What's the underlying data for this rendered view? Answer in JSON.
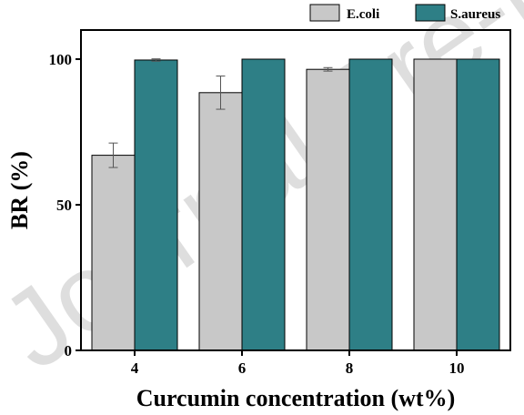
{
  "watermark": "Journal Pre-proof",
  "chart_data": {
    "type": "bar",
    "title": "",
    "xlabel": "Curcumin concentration (wt%)",
    "ylabel": "BR (%)",
    "categories": [
      "4",
      "6",
      "8",
      "10"
    ],
    "ylim": [
      0,
      110
    ],
    "yticks": [
      0,
      50,
      100
    ],
    "legend_position": "top-right",
    "grid": false,
    "series": [
      {
        "name": "E.coli",
        "color": "#c8c8c8",
        "values": [
          67.0,
          88.5,
          96.5,
          100.0
        ],
        "errors": [
          4.2,
          5.7,
          0.6,
          0
        ]
      },
      {
        "name": "S.aureus",
        "color": "#2e7f86",
        "values": [
          99.7,
          100.0,
          100.0,
          100.0
        ],
        "errors": [
          0.4,
          0,
          0,
          0
        ]
      }
    ]
  }
}
